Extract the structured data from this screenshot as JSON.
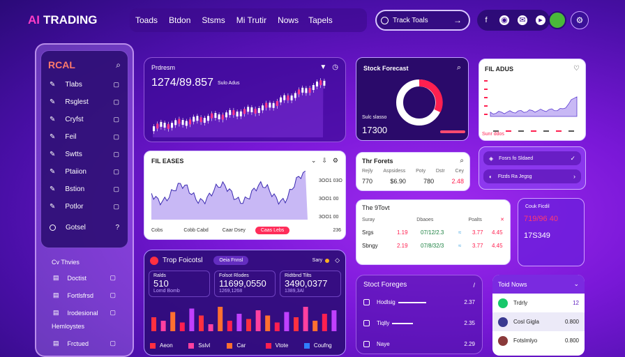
{
  "brand": {
    "ai": "AI",
    "trading": "TRADING"
  },
  "nav": [
    "Toads",
    "Btdon",
    "Stsms",
    "Mi Trutir",
    "Nows",
    "Tapels"
  ],
  "search": {
    "value": "Track Toals"
  },
  "sidebar": {
    "title": "RCAL",
    "items": [
      "Tlabs",
      "Rsglest",
      "Cryfst",
      "Feil",
      "Swtts",
      "Ptaiion",
      "Bstion",
      "Potlor"
    ],
    "bottom": "Gotsel",
    "section1": "Cv Thvies",
    "items2": [
      "Doctist",
      "Fortlsfrsd",
      "Irodesional"
    ],
    "section2": "Hemloystes",
    "items3": [
      "Frctued"
    ]
  },
  "main_chart": {
    "label": "Prdresm",
    "value": "1274/89.857",
    "sub": "Sulo Adus"
  },
  "stock_forecast": {
    "title": "Stock Forecast",
    "value": "17300",
    "sub": "Sulc slasso"
  },
  "fil_adus": {
    "title": "FIL ADUS",
    "sub": "Sunr ddos"
  },
  "fil_eases": {
    "title": "FIL EASES",
    "ticks": [
      "Cobs",
      "Cobb Cabd",
      "Caar Dsey",
      "Caas Lebs"
    ],
    "right": [
      "3OO1 03O",
      "3OO1 00",
      "3OO1 00"
    ],
    "bottom_val": "236"
  },
  "forests": {
    "title": "Thr Forets",
    "cols": [
      "Rejly",
      "Aspsidess",
      "Poty",
      "Dstr",
      "Cey"
    ],
    "vals": [
      "770",
      "$6.90",
      "780",
      "2.48"
    ]
  },
  "toggles": [
    "Fosrs fo Sldaed",
    "Ftzds Ra Jegsg"
  ],
  "stock2": {
    "title": "The 9Tovt",
    "head": [
      "Suray",
      "Dbaoes",
      "Poalts"
    ],
    "rows": [
      [
        "Srgs",
        "1.19",
        "07/12/2.3",
        "3.77",
        "4.45"
      ],
      [
        "Sbngy",
        "2.19",
        "07/8/32/3",
        "3.77",
        "4.45"
      ]
    ]
  },
  "mini": {
    "title": "Couk Ficdil",
    "v1": "719/96 40",
    "v2": "17S349"
  },
  "forecast2": {
    "title": "Trop Foicotsl",
    "pill": "Oeia Fnnsl",
    "user": "Sary",
    "stats": [
      {
        "l": "Ralds",
        "v": "510",
        "s": "Lomd Bomb"
      },
      {
        "l": "Folsot Rlodes",
        "v": "11699,0550",
        "s": "1269,1268"
      },
      {
        "l": "Ridtbnd Tilts",
        "v": "3490,0377",
        "s": "1389,3Al"
      }
    ],
    "bars": [
      40,
      30,
      55,
      25,
      65,
      45,
      20,
      70,
      30,
      50,
      35,
      60,
      45,
      25,
      55,
      40,
      70,
      30,
      50,
      60
    ],
    "legend": [
      "Aeon",
      "Sslvl",
      "Car",
      "Vtote",
      "Coufng"
    ]
  },
  "forages": {
    "title": "Stoct Foreges",
    "rows": [
      {
        "l": "Hodlsig",
        "v": "2.37"
      },
      {
        "l": "Tiqlly",
        "v": "2.35"
      },
      {
        "l": "Naye",
        "v": "2.29"
      }
    ]
  },
  "news": {
    "title": "Toid Nows",
    "items": [
      {
        "n": "Trdrly",
        "v": "12"
      },
      {
        "n": "Cosl Gigla",
        "v": "0.800"
      },
      {
        "n": "Fotslmlyo",
        "v": "0.800"
      }
    ]
  },
  "colors": {
    "accent": "#ff2d7a",
    "green": "#18c86a",
    "purple": "#7a18d8"
  }
}
